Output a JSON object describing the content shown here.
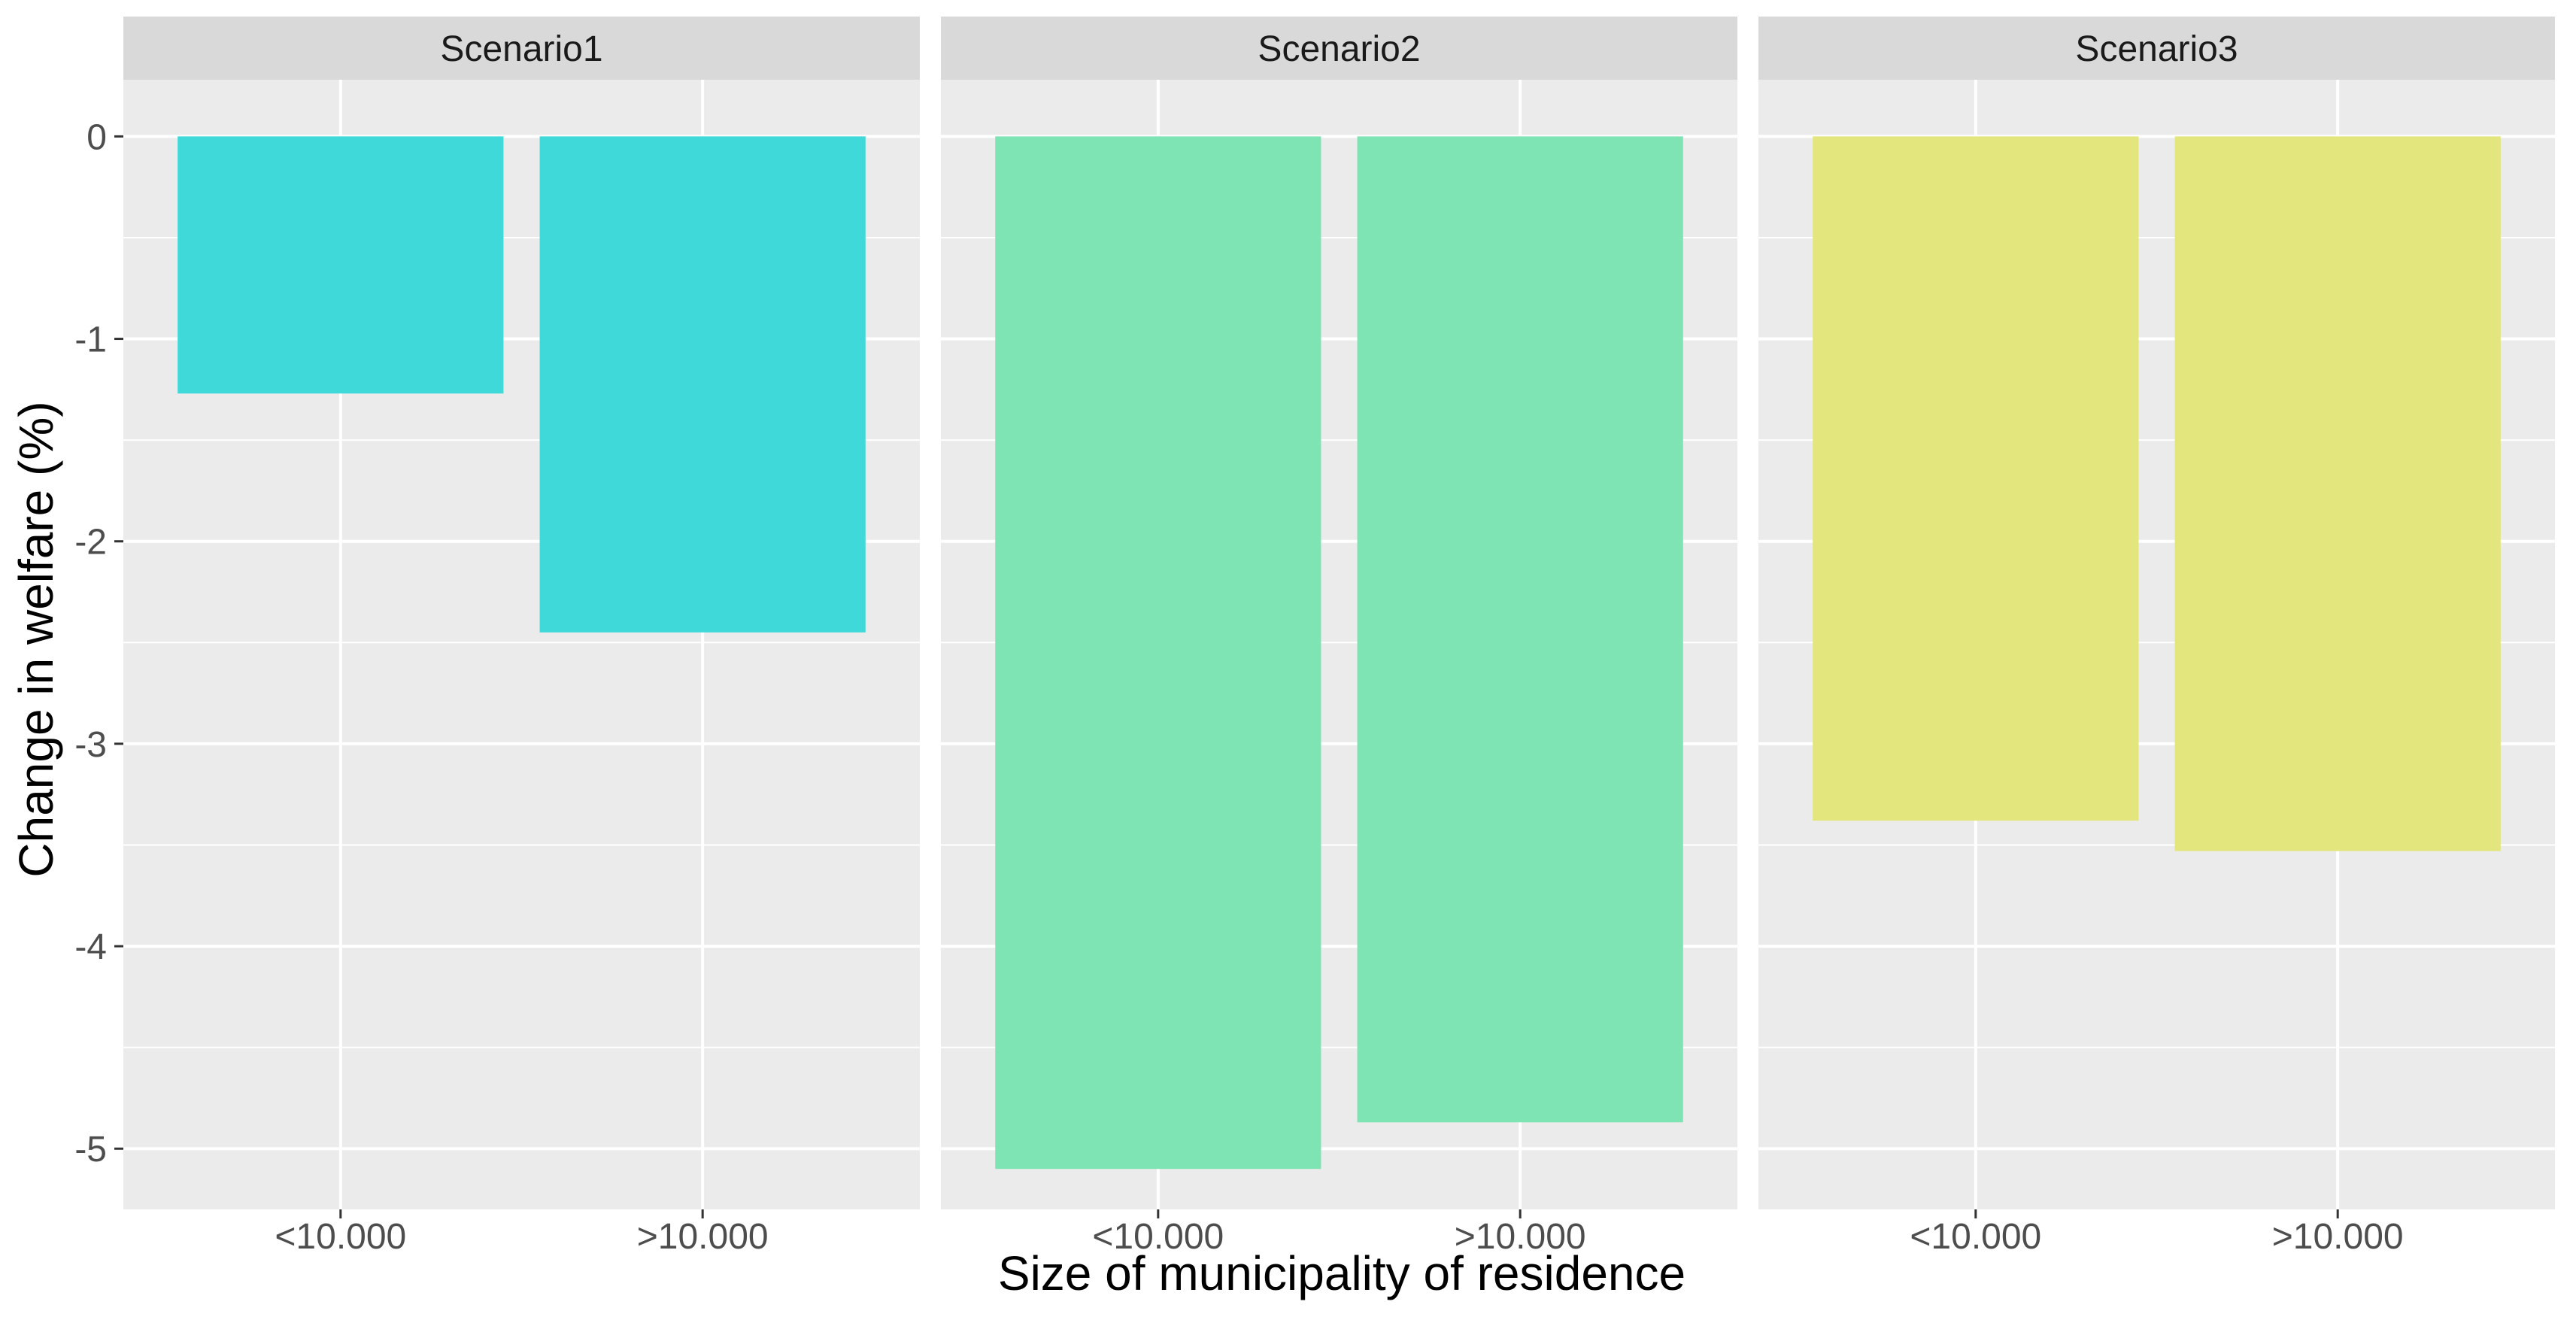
{
  "chart_data": {
    "type": "bar",
    "facet_by": "scenario",
    "xlabel": "Size of municipality of residence",
    "ylabel": "Change in welfare (%)",
    "categories": [
      "<10.000",
      ">10.000"
    ],
    "ylim": [
      -5.3,
      0.28
    ],
    "y_ticks": [
      0,
      -1,
      -2,
      -3,
      -4,
      -5
    ],
    "y_tick_labels": [
      "0",
      "-1",
      "-2",
      "-3",
      "-4",
      "-5"
    ],
    "grid": true,
    "legend": "none",
    "panels": [
      {
        "name": "Scenario1",
        "color": "#40D9DA",
        "values": [
          -1.27,
          -2.45
        ]
      },
      {
        "name": "Scenario2",
        "color": "#7FE4B3",
        "values": [
          -5.1,
          -4.87
        ]
      },
      {
        "name": "Scenario3",
        "color": "#E3E57D",
        "values": [
          -3.38,
          -3.53
        ]
      }
    ],
    "colors": {
      "panel_background": "#EBEBEB",
      "strip_background": "#D9D9D9",
      "grid_line": "#FFFFFF",
      "tick_label": "#4D4D4D",
      "axis_title": "#000000",
      "strip_text": "#1A1A1A"
    }
  }
}
